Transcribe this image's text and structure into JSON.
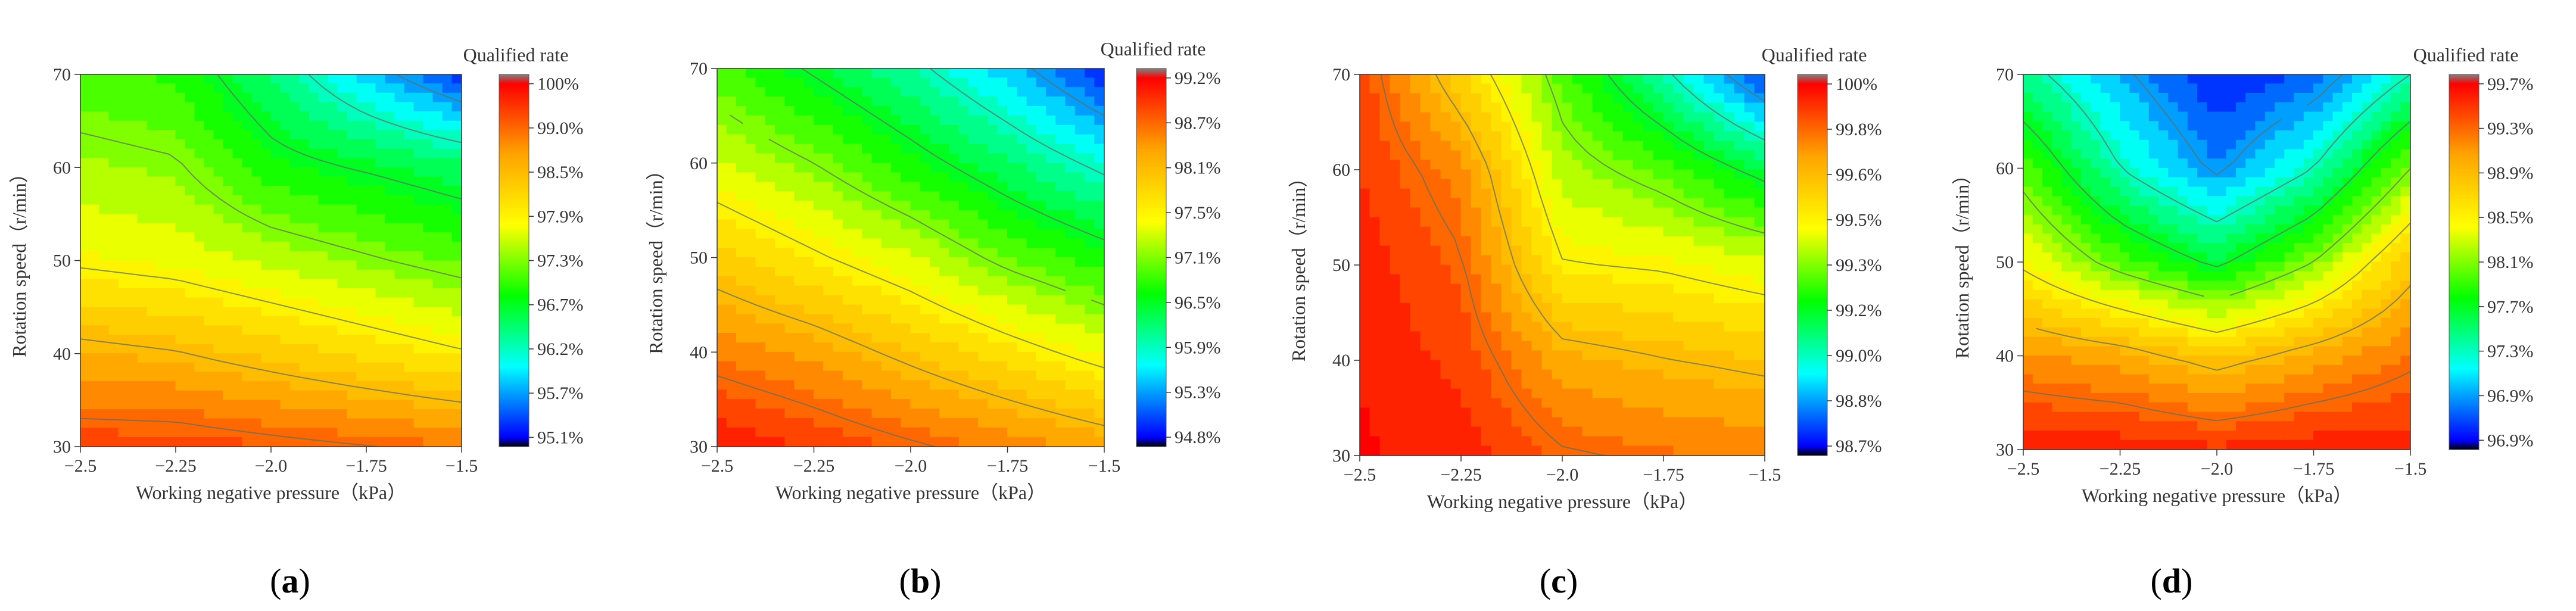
{
  "figure": {
    "colorbar_stops": [
      "#000000",
      "#0000ff",
      "#00ffff",
      "#00ff00",
      "#ffff00",
      "#ffa500",
      "#ff0000",
      "#808080"
    ],
    "line_color": "#607060"
  },
  "chart_data": [
    {
      "type": "heatmap",
      "panel_label": "a",
      "caption": {
        "open": "(",
        "letter": "a",
        "close": ")"
      },
      "xlabel": "Working negative pressure（kPa）",
      "ylabel": "Rotation speed（r/min）",
      "colorbar_title": "Qualified rate",
      "xlim": [
        -2.5,
        -1.5
      ],
      "ylim": [
        30,
        70
      ],
      "xticks": [
        "−2.5",
        "−2.25",
        "−2.0",
        "−1.75",
        "−1.5"
      ],
      "yticks": [
        "30",
        "40",
        "50",
        "60",
        "70"
      ],
      "colorbar_labels": [
        "95.1%",
        "95.7%",
        "96.2%",
        "96.7%",
        "97.3%",
        "97.9%",
        "98.5%",
        "99.0%",
        "100%"
      ],
      "zlim": [
        95.1,
        100
      ],
      "x": [
        -2.5,
        -2.25,
        -2.0,
        -1.75,
        -1.5
      ],
      "y": [
        30,
        40,
        50,
        60,
        70
      ],
      "z": [
        [
          99.6,
          99.6,
          99.5,
          99.4,
          99.3
        ],
        [
          98.9,
          98.8,
          98.6,
          98.4,
          98.2
        ],
        [
          98.1,
          98.0,
          97.8,
          97.6,
          97.4
        ],
        [
          97.7,
          97.6,
          97.1,
          96.9,
          96.7
        ],
        [
          97.3,
          97.2,
          96.6,
          95.9,
          95.3
        ]
      ]
    },
    {
      "type": "heatmap",
      "panel_label": "b",
      "caption": {
        "open": "(",
        "letter": "b",
        "close": ")"
      },
      "xlabel": "Working negative pressure（kPa）",
      "ylabel": "Rotation speed（r/min）",
      "colorbar_title": "Qualified rate",
      "xlim": [
        -2.5,
        -1.5
      ],
      "ylim": [
        30,
        70
      ],
      "xticks": [
        "−2.5",
        "−2.25",
        "−2.0",
        "−1.75",
        "−1.5"
      ],
      "yticks": [
        "30",
        "40",
        "50",
        "60",
        "70"
      ],
      "colorbar_labels": [
        "94.8%",
        "95.3%",
        "95.9%",
        "96.5%",
        "97.1%",
        "97.5%",
        "98.1%",
        "98.7%",
        "99.2%"
      ],
      "zlim": [
        94.8,
        99.2
      ],
      "x": [
        -2.5,
        -2.25,
        -2.0,
        -1.75,
        -1.5
      ],
      "y": [
        30,
        40,
        50,
        60,
        70
      ],
      "z": [
        [
          99.1,
          98.9,
          98.7,
          98.5,
          98.3
        ],
        [
          98.5,
          98.3,
          98.0,
          97.7,
          97.4
        ],
        [
          97.9,
          97.6,
          97.3,
          96.9,
          96.6
        ],
        [
          97.3,
          97.0,
          96.6,
          96.2,
          95.8
        ],
        [
          96.8,
          96.4,
          96.0,
          95.5,
          94.9
        ]
      ]
    },
    {
      "type": "heatmap",
      "panel_label": "c",
      "caption": {
        "open": "(",
        "letter": "c",
        "close": ")"
      },
      "xlabel": "Working negative pressure（kPa）",
      "ylabel": "Rotation speed（r/min）",
      "colorbar_title": "Qualified rate",
      "xlim": [
        -2.5,
        -1.5
      ],
      "ylim": [
        30,
        70
      ],
      "xticks": [
        "−2.5",
        "−2.25",
        "−2.0",
        "−1.75",
        "−1.5"
      ],
      "yticks": [
        "30",
        "40",
        "50",
        "60",
        "70"
      ],
      "colorbar_labels": [
        "98.7%",
        "98.8%",
        "99.0%",
        "99.2%",
        "99.3%",
        "99.5%",
        "99.6%",
        "99.8%",
        "100%"
      ],
      "zlim": [
        98.7,
        100
      ],
      "x": [
        -2.5,
        -2.25,
        -2.0,
        -1.75,
        -1.5
      ],
      "y": [
        30,
        40,
        50,
        60,
        70
      ],
      "z": [
        [
          99.98,
          99.95,
          99.85,
          99.82,
          99.8
        ],
        [
          99.97,
          99.9,
          99.72,
          99.68,
          99.65
        ],
        [
          99.95,
          99.85,
          99.52,
          99.5,
          99.45
        ],
        [
          99.92,
          99.78,
          99.4,
          99.3,
          99.15
        ],
        [
          99.9,
          99.6,
          99.3,
          99.05,
          98.75
        ]
      ]
    },
    {
      "type": "heatmap",
      "panel_label": "d",
      "caption": {
        "open": "(",
        "letter": "d",
        "close": ")"
      },
      "xlabel": "Working negative pressure（kPa）",
      "ylabel": "Rotation speed（r/min）",
      "colorbar_title": "Qualified rate",
      "xlim": [
        -2.5,
        -1.5
      ],
      "ylim": [
        30,
        70
      ],
      "xticks": [
        "−2.5",
        "−2.25",
        "−2.0",
        "−1.75",
        "−1.5"
      ],
      "yticks": [
        "30",
        "40",
        "50",
        "60",
        "70"
      ],
      "colorbar_labels": [
        "96.9%",
        "96.9%",
        "97.3%",
        "97.7%",
        "98.1%",
        "98.5%",
        "98.9%",
        "99.3%",
        "99.7%"
      ],
      "zlim": [
        96.9,
        99.7
      ],
      "x": [
        -2.5,
        -2.25,
        -2.0,
        -1.75,
        -1.5
      ],
      "y": [
        30,
        40,
        50,
        60,
        70
      ],
      "z": [
        [
          99.6,
          99.6,
          99.55,
          99.6,
          99.6
        ],
        [
          99.2,
          99.1,
          98.9,
          99.1,
          99.3
        ],
        [
          98.6,
          98.2,
          97.9,
          98.3,
          98.9
        ],
        [
          98.2,
          97.6,
          97.2,
          97.6,
          98.3
        ],
        [
          97.7,
          97.3,
          96.95,
          97.1,
          97.6
        ]
      ]
    }
  ]
}
